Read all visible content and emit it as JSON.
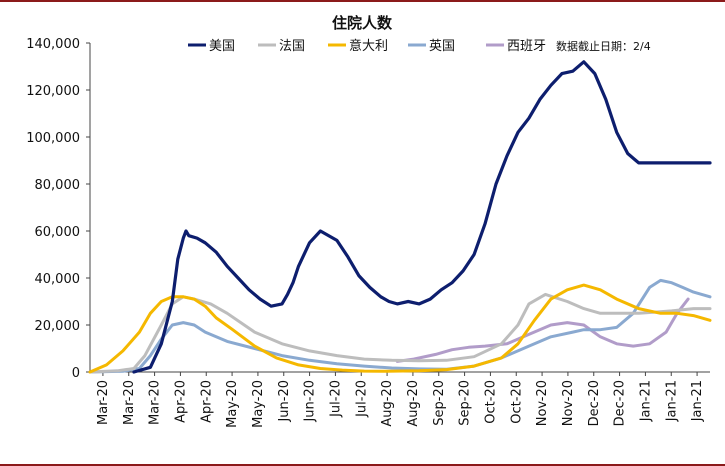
{
  "chart_data": {
    "type": "line",
    "title": "住院人数",
    "note": "数据截止日期：2/4",
    "xlabel": "",
    "ylabel": "",
    "ylim": [
      0,
      140000
    ],
    "yticks": [
      0,
      20000,
      40000,
      60000,
      80000,
      100000,
      120000,
      140000
    ],
    "ytick_labels": [
      "0",
      "20,000",
      "40,000",
      "60,000",
      "80,000",
      "100,000",
      "120,000",
      "140,000"
    ],
    "xlim": [
      0,
      11.3
    ],
    "xtick_labels": [
      "Mar-20",
      "Mar-20",
      "Mar-20",
      "Apr-20",
      "Apr-20",
      "May-20",
      "May-20",
      "Jun-20",
      "Jun-20",
      "Jul-20",
      "Jul-20",
      "Aug-20",
      "Aug-20",
      "Sep-20",
      "Sep-20",
      "Oct-20",
      "Oct-20",
      "Nov-20",
      "Nov-20",
      "Dec-20",
      "Dec-20",
      "Jan-21",
      "Jan-21",
      "Jan-21"
    ],
    "series": [
      {
        "name": "美国",
        "color": "#0d1e6e",
        "width": 3.2,
        "x": [
          0.8,
          1.1,
          1.3,
          1.5,
          1.6,
          1.7,
          1.75,
          1.8,
          1.95,
          2.1,
          2.3,
          2.5,
          2.7,
          2.9,
          3.1,
          3.3,
          3.5,
          3.6,
          3.7,
          3.8,
          4.0,
          4.2,
          4.5,
          4.7,
          4.9,
          5.1,
          5.3,
          5.45,
          5.6,
          5.8,
          6.0,
          6.2,
          6.4,
          6.6,
          6.8,
          7.0,
          7.2,
          7.4,
          7.6,
          7.8,
          8.0,
          8.2,
          8.4,
          8.6,
          8.8,
          9.0,
          9.2,
          9.4,
          9.6,
          9.8,
          10.0,
          10.2,
          10.4,
          10.5,
          10.6,
          10.7,
          10.85,
          11.0,
          11.15,
          11.3
        ],
        "y": [
          0,
          2000,
          12000,
          30000,
          48000,
          57000,
          60000,
          58000,
          57000,
          55000,
          51000,
          45000,
          40000,
          35000,
          31000,
          28000,
          29000,
          33000,
          38000,
          45000,
          55000,
          60000,
          56000,
          49000,
          41000,
          36000,
          32000,
          30000,
          29000,
          30000,
          29000,
          31000,
          35000,
          38000,
          43000,
          50000,
          63000,
          80000,
          92000,
          102000,
          108000,
          116000,
          122000,
          127000,
          128000,
          132000,
          127000,
          116000,
          102000,
          93000,
          89000,
          89000,
          89000,
          89000,
          89000,
          89000,
          89000,
          89000,
          89000,
          89000
        ]
      },
      {
        "name": "法国",
        "color": "#bdbdbd",
        "width": 3,
        "x": [
          0,
          0.5,
          0.8,
          1.0,
          1.3,
          1.5,
          1.7,
          1.9,
          2.2,
          2.5,
          3.0,
          3.5,
          4.0,
          4.5,
          5.0,
          5.5,
          6.0,
          6.5,
          7.0,
          7.5,
          7.8,
          8.0,
          8.3,
          8.7,
          9.0,
          9.3,
          9.7,
          10.0,
          10.3,
          10.6,
          11.0,
          11.3
        ],
        "y": [
          0,
          500,
          1500,
          7000,
          20000,
          29000,
          32000,
          31000,
          29000,
          25000,
          17000,
          12000,
          9000,
          7000,
          5500,
          5000,
          4800,
          5000,
          6500,
          12000,
          20000,
          29000,
          33000,
          30000,
          27000,
          25000,
          25000,
          25000,
          25500,
          26000,
          27000,
          27000
        ]
      },
      {
        "name": "意大利",
        "color": "#f5b800",
        "width": 3,
        "x": [
          0,
          0.3,
          0.6,
          0.9,
          1.1,
          1.3,
          1.5,
          1.7,
          1.9,
          2.1,
          2.3,
          2.6,
          3.0,
          3.4,
          3.8,
          4.2,
          4.6,
          5.0,
          5.4,
          6.0,
          6.5,
          7.0,
          7.5,
          7.8,
          8.1,
          8.4,
          8.7,
          9.0,
          9.3,
          9.6,
          10.0,
          10.4,
          10.7,
          11.0,
          11.3
        ],
        "y": [
          0,
          3000,
          9000,
          17000,
          25000,
          30000,
          32000,
          32000,
          31000,
          28000,
          23000,
          18000,
          11000,
          6000,
          3000,
          1500,
          800,
          400,
          300,
          500,
          1000,
          2500,
          6000,
          12000,
          22000,
          31000,
          35000,
          37000,
          35000,
          31000,
          27000,
          25000,
          25000,
          24000,
          22000
        ]
      },
      {
        "name": "英国",
        "color": "#8aa9d0",
        "width": 3,
        "x": [
          0,
          0.6,
          0.9,
          1.1,
          1.3,
          1.5,
          1.7,
          1.9,
          2.1,
          2.5,
          3.0,
          3.5,
          4.0,
          4.5,
          5.0,
          5.5,
          6.0,
          6.5,
          7.0,
          7.5,
          8.0,
          8.4,
          8.8,
          9.0,
          9.3,
          9.6,
          9.9,
          10.2,
          10.4,
          10.6,
          10.8,
          11.0,
          11.3
        ],
        "y": [
          0,
          300,
          1500,
          7000,
          14000,
          20000,
          21000,
          20000,
          17000,
          13000,
          10000,
          7000,
          5000,
          3500,
          2500,
          1700,
          1300,
          1200,
          2500,
          6000,
          11000,
          15000,
          17000,
          18000,
          18000,
          19000,
          25000,
          36000,
          39000,
          38000,
          36000,
          34000,
          32000
        ]
      },
      {
        "name": "西班牙",
        "color": "#b19cc9",
        "width": 3,
        "x": [
          5.6,
          5.9,
          6.3,
          6.6,
          6.9,
          7.2,
          7.6,
          8.0,
          8.4,
          8.7,
          9.0,
          9.3,
          9.6,
          9.9,
          10.2,
          10.5,
          10.7,
          10.9
        ],
        "y": [
          4500,
          5500,
          7500,
          9500,
          10500,
          11000,
          12000,
          16000,
          20000,
          21000,
          20000,
          15000,
          12000,
          11000,
          12000,
          17000,
          25000,
          31000
        ]
      }
    ]
  }
}
